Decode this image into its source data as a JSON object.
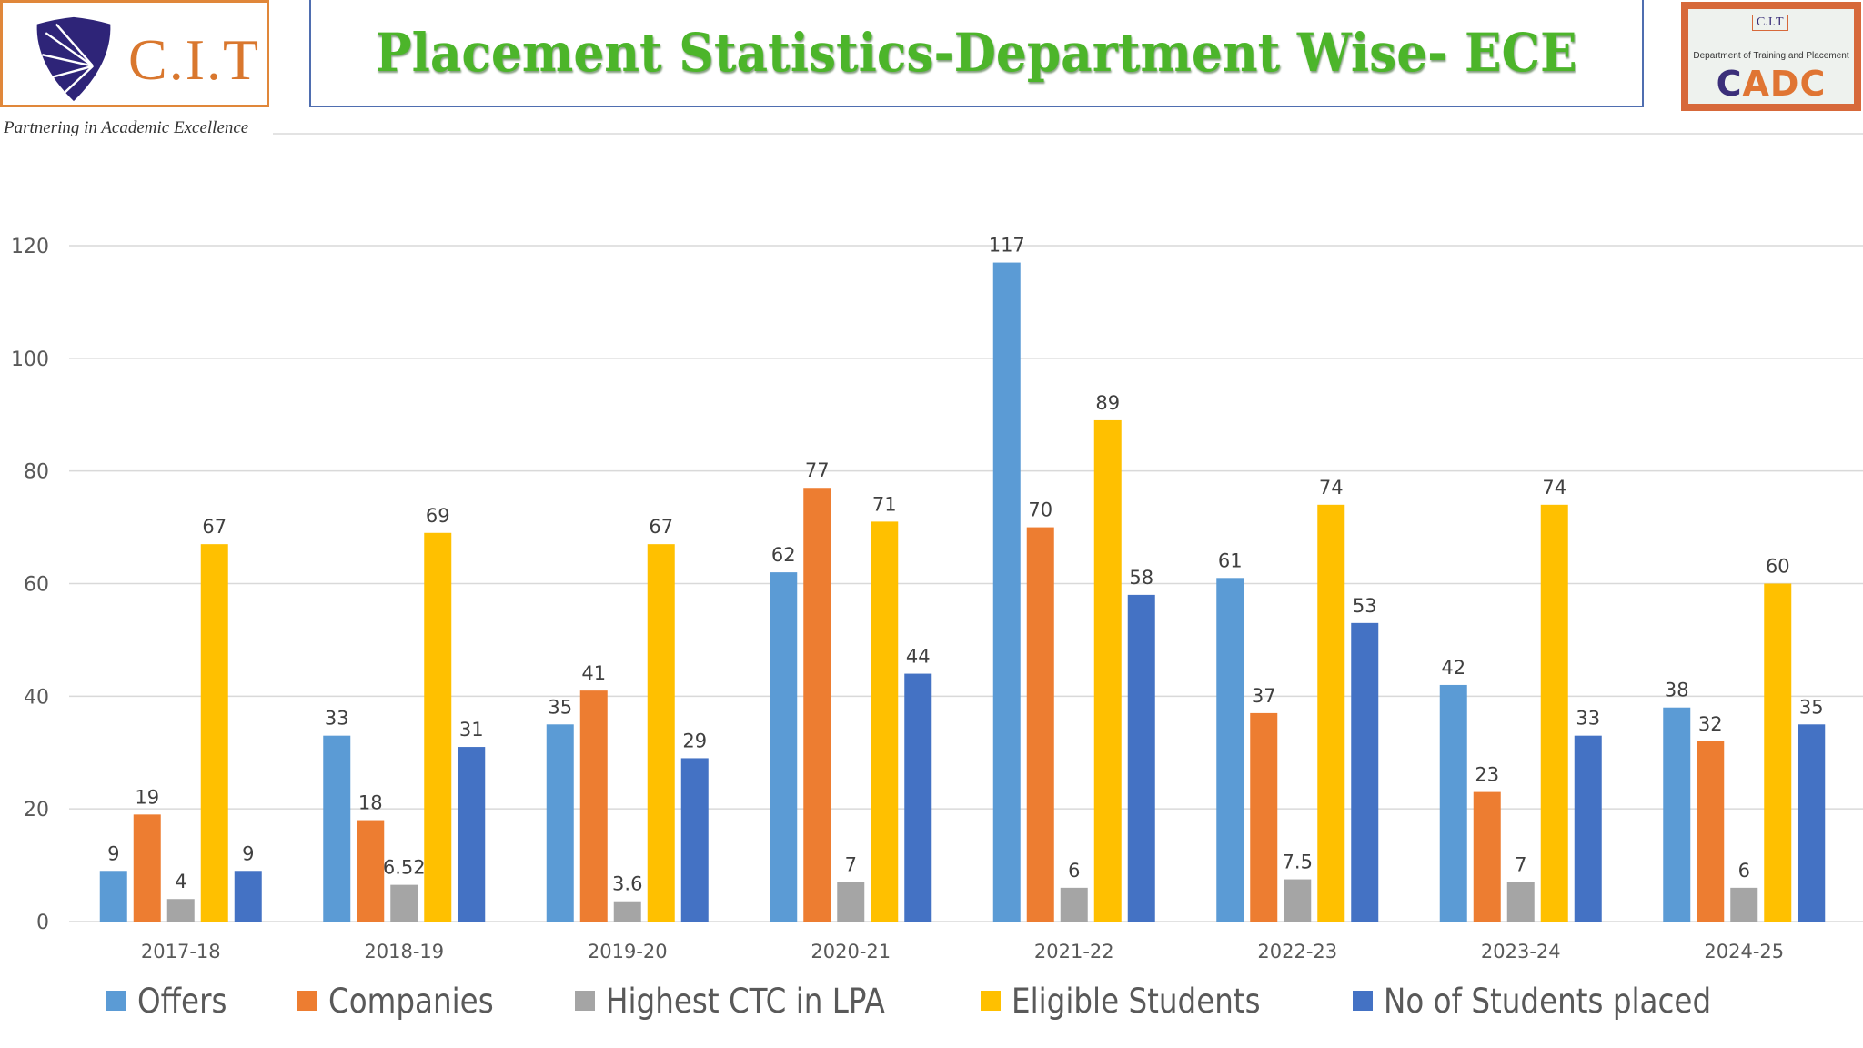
{
  "header": {
    "logo_left": {
      "text": "C.I.T",
      "tagline": "Partnering in Academic Excellence"
    },
    "title": "Placement Statistics-Department Wise- ECE",
    "logo_right": {
      "badge": "C.I.T",
      "department": "Department of Training and Placement",
      "cadc_first": "C",
      "cadc_rest": "ADC"
    }
  },
  "colors": {
    "Offers": "#5b9bd5",
    "Companies": "#ed7d31",
    "Highest CTC in LPA": "#a5a5a5",
    "Eligible Students": "#ffc000",
    "No of Students placed": "#4472c4"
  },
  "chart_data": {
    "type": "bar",
    "title": "Placement Statistics-Department Wise- ECE",
    "xlabel": "",
    "ylabel": "",
    "ylim": [
      0,
      120
    ],
    "yticks": [
      0,
      20,
      40,
      60,
      80,
      100,
      120
    ],
    "grid": true,
    "legend_position": "bottom",
    "categories": [
      "2017-18",
      "2018-19",
      "2019-20",
      "2020-21",
      "2021-22",
      "2022-23",
      "2023-24",
      "2024-25"
    ],
    "series": [
      {
        "name": "Offers",
        "values": [
          9,
          33,
          35,
          62,
          117,
          61,
          42,
          38
        ]
      },
      {
        "name": "Companies",
        "values": [
          19,
          18,
          41,
          77,
          70,
          37,
          23,
          32
        ]
      },
      {
        "name": "Highest CTC in LPA",
        "values": [
          4,
          6.52,
          3.6,
          7,
          6,
          7.5,
          7,
          6
        ]
      },
      {
        "name": "Eligible Students",
        "values": [
          67,
          69,
          67,
          71,
          89,
          74,
          74,
          60
        ]
      },
      {
        "name": "No of Students placed",
        "values": [
          9,
          31,
          29,
          44,
          58,
          53,
          33,
          35
        ]
      }
    ]
  }
}
